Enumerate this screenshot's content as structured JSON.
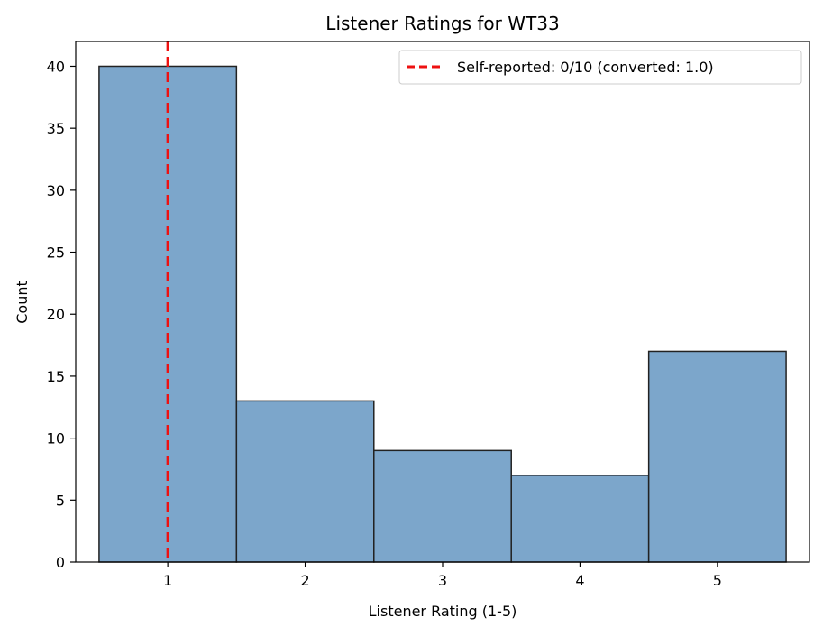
{
  "chart_data": {
    "type": "bar",
    "title": "Listener Ratings for WT33",
    "xlabel": "Listener Rating (1-5)",
    "ylabel": "Count",
    "categories": [
      "1",
      "2",
      "3",
      "4",
      "5"
    ],
    "x": [
      1,
      2,
      3,
      4,
      5
    ],
    "values": [
      40,
      13,
      9,
      7,
      17
    ],
    "xlim": [
      0.33,
      5.67
    ],
    "ylim": [
      0,
      42
    ],
    "xticks": [
      1,
      2,
      3,
      4,
      5
    ],
    "yticks": [
      0,
      5,
      10,
      15,
      20,
      25,
      30,
      35,
      40
    ],
    "grid": false,
    "legend_position": "top-right",
    "bar_color": "#7ca6cb",
    "bar_edge_color": "#222222",
    "reference_line": {
      "x": 1.0,
      "label": "Self-reported: 0/10 (converted: 1.0)",
      "color": "#ee1111",
      "style": "dashed"
    }
  }
}
